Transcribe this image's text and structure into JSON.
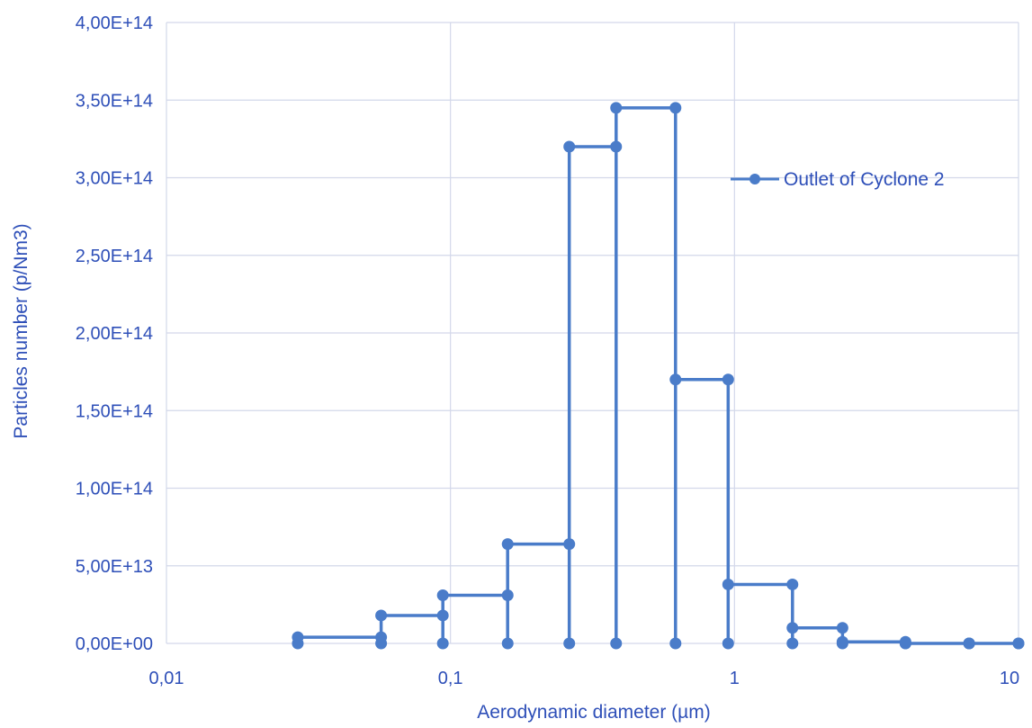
{
  "chart_data": {
    "type": "line",
    "title": "",
    "xlabel": "Aerodynamic diameter (µm)",
    "ylabel": "Particles number (p/Nm3)",
    "x_scale": "log",
    "xlim": [
      0.01,
      10
    ],
    "ylim": [
      0,
      400000000000000.0
    ],
    "x_ticks": [
      0.01,
      0.1,
      1,
      10
    ],
    "x_tick_labels": [
      "0,01",
      "0,1",
      "1",
      "10"
    ],
    "y_ticks": [
      0,
      50000000000000.0,
      100000000000000.0,
      150000000000000.0,
      200000000000000.0,
      250000000000000.0,
      300000000000000.0,
      350000000000000.0,
      400000000000000.0
    ],
    "y_tick_labels": [
      "0,00E+00",
      "5,00E+13",
      "1,00E+14",
      "1,50E+14",
      "2,00E+14",
      "2,50E+14",
      "3,00E+14",
      "3,50E+14",
      "4,00E+14"
    ],
    "grid": true,
    "legend_position": "top-right",
    "line_color": "#4A7CC9",
    "text_color": "#2E4FB8",
    "series": [
      {
        "name": "Outlet of Cyclone 2",
        "points": [
          [
            0.029,
            0
          ],
          [
            0.029,
            4000000000000.0
          ],
          [
            0.057,
            4000000000000.0
          ],
          [
            0.057,
            0
          ],
          [
            0.057,
            18000000000000.0
          ],
          [
            0.094,
            18000000000000.0
          ],
          [
            0.094,
            0
          ],
          [
            0.094,
            31000000000000.0
          ],
          [
            0.159,
            31000000000000.0
          ],
          [
            0.159,
            0
          ],
          [
            0.159,
            64000000000000.0
          ],
          [
            0.262,
            64000000000000.0
          ],
          [
            0.262,
            0
          ],
          [
            0.262,
            320000000000000.0
          ],
          [
            0.383,
            320000000000000.0
          ],
          [
            0.383,
            0
          ],
          [
            0.383,
            345000000000000.0
          ],
          [
            0.62,
            345000000000000.0
          ],
          [
            0.62,
            0
          ],
          [
            0.62,
            170000000000000.0
          ],
          [
            0.95,
            170000000000000.0
          ],
          [
            0.95,
            0
          ],
          [
            0.95,
            38000000000000.0
          ],
          [
            1.6,
            38000000000000.0
          ],
          [
            1.6,
            0
          ],
          [
            1.6,
            10000000000000.0
          ],
          [
            2.4,
            10000000000000.0
          ],
          [
            2.4,
            0
          ],
          [
            2.4,
            1000000000000.0
          ],
          [
            4.0,
            1000000000000.0
          ],
          [
            4.0,
            0
          ],
          [
            4.0,
            0
          ],
          [
            6.7,
            0
          ],
          [
            6.7,
            0
          ],
          [
            6.7,
            0
          ],
          [
            10.0,
            0
          ],
          [
            10.0,
            0
          ]
        ]
      }
    ]
  }
}
